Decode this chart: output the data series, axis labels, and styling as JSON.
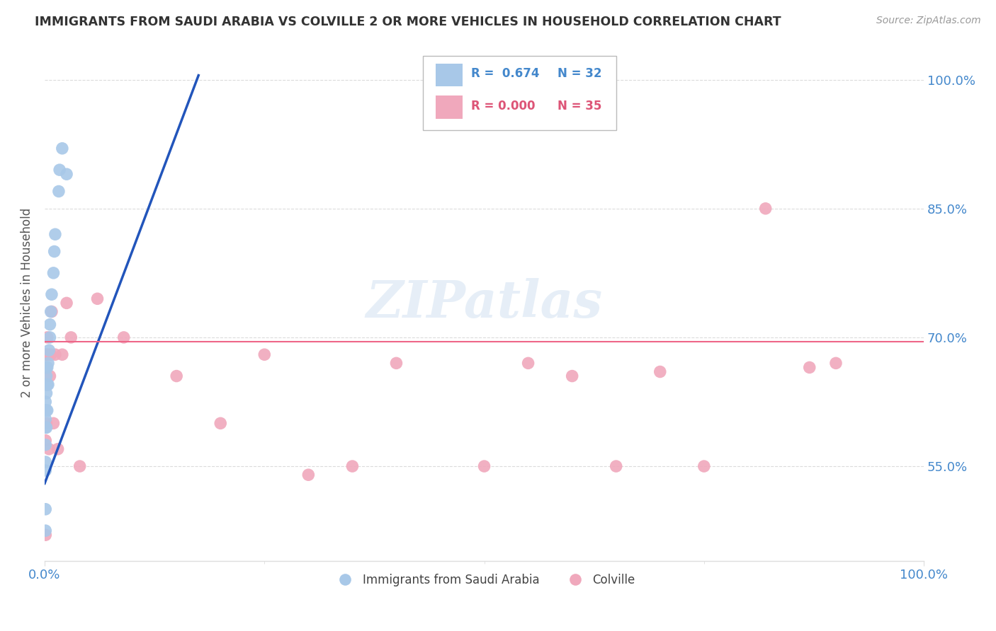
{
  "title": "IMMIGRANTS FROM SAUDI ARABIA VS COLVILLE 2 OR MORE VEHICLES IN HOUSEHOLD CORRELATION CHART",
  "source": "Source: ZipAtlas.com",
  "ylabel": "2 or more Vehicles in Household",
  "xlim": [
    0.0,
    1.0
  ],
  "ylim": [
    0.44,
    1.04
  ],
  "xtick_positions": [
    0.0,
    1.0
  ],
  "xtick_labels": [
    "0.0%",
    "100.0%"
  ],
  "ytick_positions": [
    0.55,
    0.7,
    0.85,
    1.0
  ],
  "ytick_labels": [
    "55.0%",
    "70.0%",
    "85.0%",
    "100.0%"
  ],
  "legend_r1": "R =  0.674",
  "legend_n1": "N = 32",
  "legend_r2": "R = 0.000",
  "legend_n2": "N = 35",
  "color_blue": "#a8c8e8",
  "color_pink": "#f0a8bc",
  "trendline_blue_color": "#2255bb",
  "trendline_pink_color": "#ee6688",
  "watermark": "ZIPatlas",
  "blue_scatter_x": [
    0.001,
    0.001,
    0.001,
    0.001,
    0.001,
    0.001,
    0.001,
    0.001,
    0.001,
    0.002,
    0.002,
    0.002,
    0.002,
    0.002,
    0.002,
    0.003,
    0.003,
    0.003,
    0.004,
    0.004,
    0.005,
    0.006,
    0.006,
    0.007,
    0.008,
    0.01,
    0.011,
    0.012,
    0.016,
    0.017,
    0.02,
    0.025
  ],
  "blue_scatter_y": [
    0.475,
    0.5,
    0.545,
    0.555,
    0.575,
    0.595,
    0.605,
    0.615,
    0.625,
    0.595,
    0.615,
    0.635,
    0.645,
    0.655,
    0.665,
    0.615,
    0.645,
    0.665,
    0.645,
    0.67,
    0.685,
    0.7,
    0.715,
    0.73,
    0.75,
    0.775,
    0.8,
    0.82,
    0.87,
    0.895,
    0.92,
    0.89
  ],
  "pink_scatter_x": [
    0.001,
    0.001,
    0.001,
    0.002,
    0.002,
    0.003,
    0.004,
    0.005,
    0.006,
    0.007,
    0.008,
    0.01,
    0.012,
    0.015,
    0.02,
    0.025,
    0.03,
    0.04,
    0.06,
    0.09,
    0.15,
    0.2,
    0.25,
    0.3,
    0.35,
    0.4,
    0.5,
    0.55,
    0.6,
    0.65,
    0.7,
    0.75,
    0.82,
    0.87,
    0.9
  ],
  "pink_scatter_y": [
    0.47,
    0.58,
    0.68,
    0.6,
    0.68,
    0.7,
    0.68,
    0.57,
    0.655,
    0.68,
    0.73,
    0.6,
    0.68,
    0.57,
    0.68,
    0.74,
    0.7,
    0.55,
    0.745,
    0.7,
    0.655,
    0.6,
    0.68,
    0.54,
    0.55,
    0.67,
    0.55,
    0.67,
    0.655,
    0.55,
    0.66,
    0.55,
    0.85,
    0.665,
    0.67
  ],
  "trendline_blue_x_start": 0.0,
  "trendline_blue_x_end": 0.175,
  "trendline_blue_y_start": 0.53,
  "trendline_blue_y_end": 1.005,
  "trendline_pink_y": 0.695,
  "legend_box_color_blue": "#a8c8e8",
  "legend_box_color_pink": "#f0a8bc",
  "legend_text_color_blue": "#4488cc",
  "legend_text_color_pink": "#dd5577",
  "bottom_legend_label1": "Immigrants from Saudi Arabia",
  "bottom_legend_label2": "Colville",
  "tick_color": "#4488cc",
  "grid_color": "#cccccc",
  "spine_color": "#dddddd"
}
